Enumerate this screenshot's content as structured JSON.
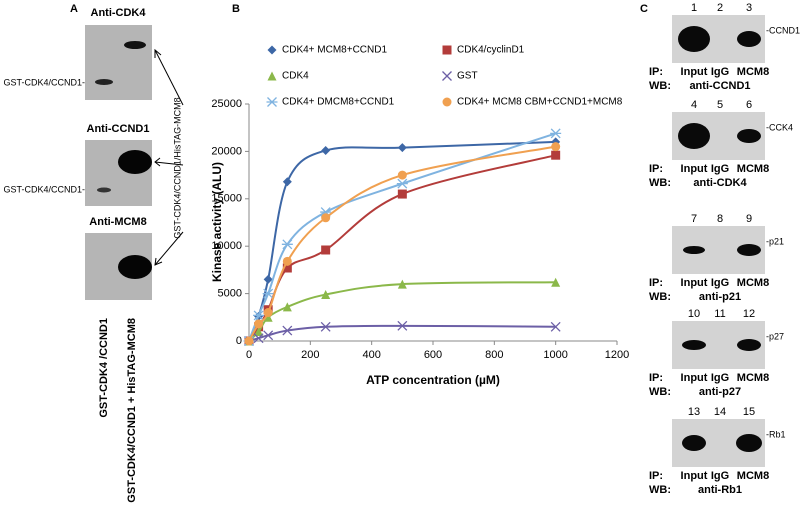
{
  "panel_a": {
    "label": "A",
    "blots": [
      {
        "title": "Anti-CDK4",
        "band_label": "GST-CDK4/CCND1-"
      },
      {
        "title": "Anti-CCND1",
        "band_label": "GST-CDK4/CCND1-"
      },
      {
        "title": "Anti-MCM8"
      }
    ],
    "arrow_label": "GST-CDK4/CCND1/HisTAG-MCM8",
    "lanes": [
      "GST-CDK4 /CCND1",
      "GST-CDK4/CCND1 + HisTAG-MCM8"
    ]
  },
  "chart_data": {
    "type": "line",
    "label": "B",
    "x_label": "ATP concentration (µM)",
    "y_label": "Kinase activity (ALU)",
    "x": [
      0,
      31.25,
      62.5,
      125,
      250,
      500,
      1000
    ],
    "xlim": [
      0,
      1200
    ],
    "xticks": [
      0,
      200,
      400,
      600,
      800,
      1000,
      1200
    ],
    "ylim": [
      0,
      25000
    ],
    "yticks": [
      0,
      5000,
      10000,
      15000,
      20000,
      25000
    ],
    "series": [
      {
        "name": "CDK4+ MCM8+CCND1",
        "color": "#3d67a6",
        "marker": "diamond",
        "values": [
          0,
          2600,
          6500,
          16800,
          20100,
          20400,
          21000
        ]
      },
      {
        "name": "CDK4/cyclinD1",
        "color": "#b33c3a",
        "marker": "square",
        "values": [
          0,
          1500,
          3300,
          7700,
          9600,
          15500,
          19600
        ]
      },
      {
        "name": "CDK4",
        "color": "#8bb84a",
        "marker": "triangle",
        "values": [
          0,
          1000,
          2500,
          3600,
          4900,
          6000,
          6200
        ]
      },
      {
        "name": "GST",
        "color": "#6c5fa6",
        "marker": "x",
        "values": [
          0,
          300,
          600,
          1100,
          1500,
          1600,
          1500
        ]
      },
      {
        "name": "CDK4+ DMCM8+CCND1",
        "color": "#7fb3e0",
        "marker": "asterisk",
        "values": [
          0,
          2700,
          5000,
          10200,
          13600,
          16600,
          21900
        ]
      },
      {
        "name": "CDK4+ MCM8 CBM+CCND1+MCM8",
        "color": "#f0a050",
        "marker": "circle",
        "values": [
          0,
          1800,
          3000,
          8400,
          13000,
          17500,
          20500
        ]
      }
    ]
  },
  "panel_c": {
    "label": "C",
    "ip_label": "IP:",
    "wb_label": "WB:",
    "blots": [
      {
        "lanes": [
          "1",
          "2",
          "3"
        ],
        "band_label": "-CCND1",
        "ip": [
          "Input",
          "IgG",
          "MCM8"
        ],
        "wb": "anti-CCND1"
      },
      {
        "lanes": [
          "4",
          "5",
          "6"
        ],
        "band_label": "-CCK4",
        "ip": [
          "Input",
          "IgG",
          "MCM8"
        ],
        "wb": "anti-CDK4"
      },
      {
        "lanes": [
          "7",
          "8",
          "9"
        ],
        "band_label": "-p21",
        "ip": [
          "Input",
          "IgG",
          "MCM8"
        ],
        "wb": "anti-p21"
      },
      {
        "lanes": [
          "10",
          "11",
          "12"
        ],
        "band_label": "-p27",
        "ip": [
          "Input",
          "IgG",
          "MCM8"
        ],
        "wb": "anti-p27"
      },
      {
        "lanes": [
          "13",
          "14",
          "15"
        ],
        "band_label": "-Rb1",
        "ip": [
          "Input",
          "IgG",
          "MCM8"
        ],
        "wb": "anti-Rb1"
      }
    ]
  }
}
